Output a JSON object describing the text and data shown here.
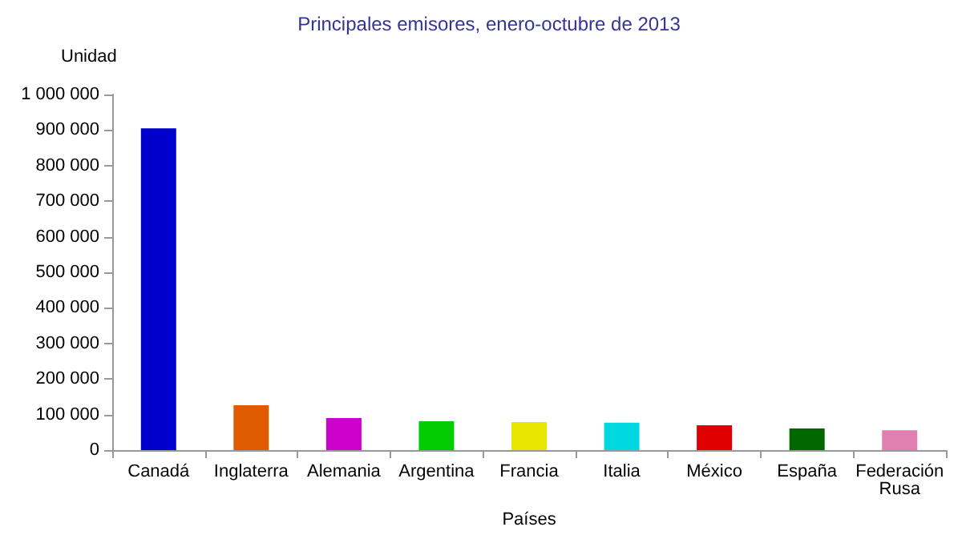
{
  "chart_data": {
    "type": "bar",
    "title": "Principales emisores, enero-octubre de 2013",
    "xlabel": "Países",
    "ylabel": "Unidad",
    "categories": [
      "Canadá",
      "Inglaterra",
      "Alemania",
      "Argentina",
      "Francia",
      "Italia",
      "México",
      "España",
      "Federación\nRusa"
    ],
    "values": [
      905000,
      126000,
      90000,
      81000,
      79000,
      77000,
      70000,
      61000,
      56000
    ],
    "colors": [
      "#0000cc",
      "#e05a00",
      "#cc00cc",
      "#00cc00",
      "#e6e600",
      "#00d8e0",
      "#e00000",
      "#006600",
      "#e080b0"
    ],
    "ylim": [
      0,
      1000000
    ],
    "yticks": [
      {
        "value": 0,
        "label": "0"
      },
      {
        "value": 100000,
        "label": "100 000"
      },
      {
        "value": 200000,
        "label": "200 000"
      },
      {
        "value": 300000,
        "label": "300 000"
      },
      {
        "value": 400000,
        "label": "400 000"
      },
      {
        "value": 500000,
        "label": "500 000"
      },
      {
        "value": 600000,
        "label": "600 000"
      },
      {
        "value": 700000,
        "label": "700 000"
      },
      {
        "value": 800000,
        "label": "800 000"
      },
      {
        "value": 900000,
        "label": "900 000"
      },
      {
        "value": 1000000,
        "label": "1 000 000"
      }
    ],
    "grid": false
  }
}
